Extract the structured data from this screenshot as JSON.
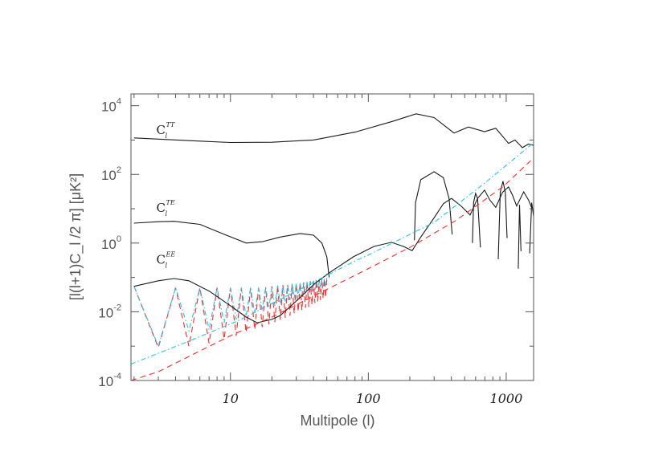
{
  "chart_data": {
    "type": "line",
    "xlabel": "Multipole (l)",
    "ylabel": "[l(l+1)C_l /2 π] [μK²]",
    "xscale": "log",
    "yscale": "log",
    "xlim": [
      1.9,
      1580
    ],
    "ylim": [
      0.0001,
      22000
    ],
    "grid": false,
    "x_tick_labels": [
      "10",
      "100",
      "1000"
    ],
    "x_ticks": [
      10,
      100,
      1000
    ],
    "y_ticks": [
      {
        "value": 10000,
        "base": "10",
        "exp": "4"
      },
      {
        "value": 100,
        "base": "10",
        "exp": "2"
      },
      {
        "value": 1,
        "base": "10",
        "exp": "0"
      },
      {
        "value": 0.01,
        "base": "10",
        "exp": "-2"
      },
      {
        "value": 0.0001,
        "base": "10",
        "exp": "-4"
      }
    ],
    "annotations": [
      {
        "text": "C",
        "sub": "l",
        "sup": "TT",
        "at": [
          2.9,
          1500
        ]
      },
      {
        "text": "C",
        "sub": "l",
        "sup": "TE",
        "at": [
          2.9,
          8
        ]
      },
      {
        "text": "C",
        "sub": "l",
        "sup": "EE",
        "at": [
          2.9,
          0.25
        ]
      }
    ],
    "colors": {
      "black": "#1a1a1a",
      "red": "#ff2a2a",
      "cyan": "#22c4ee"
    },
    "series": [
      {
        "id": "TT",
        "color": "black",
        "style": "solid",
        "segments": [
          [
            [
              2,
              1150
            ],
            [
              5,
              960
            ],
            [
              10,
              850
            ],
            [
              20,
              860
            ],
            [
              40,
              1000
            ],
            [
              80,
              1700
            ],
            [
              150,
              3500
            ],
            [
              222,
              5800
            ],
            [
              300,
              4500
            ],
            [
              418,
              1600
            ],
            [
              532,
              2400
            ],
            [
              696,
              1750
            ],
            [
              840,
              2200
            ],
            [
              1040,
              800
            ],
            [
              1158,
              1000
            ],
            [
              1310,
              600
            ],
            [
              1450,
              760
            ],
            [
              1580,
              700
            ]
          ]
        ]
      },
      {
        "id": "TE",
        "color": "black",
        "style": "solid",
        "segments": [
          [
            [
              2,
              3.8
            ],
            [
              3,
              4.2
            ],
            [
              3.9,
              4.3
            ],
            [
              6,
              3.5
            ],
            [
              9,
              1.8
            ],
            [
              13,
              1.0
            ],
            [
              17,
              1.1
            ],
            [
              23,
              1.5
            ],
            [
              32,
              1.9
            ],
            [
              40,
              1.7
            ],
            [
              46,
              1.0
            ],
            [
              50,
              0.4
            ],
            [
              52,
              0.1
            ]
          ],
          [
            [
              216,
              1.2
            ],
            [
              220,
              15
            ],
            [
              240,
              70
            ],
            [
              300,
              120
            ],
            [
              350,
              80
            ],
            [
              385,
              20
            ],
            [
              406,
              1.8
            ]
          ],
          [
            [
              569,
              1.0
            ],
            [
              580,
              15
            ],
            [
              600,
              28
            ],
            [
              620,
              20
            ],
            [
              650,
              0.75
            ]
          ],
          [
            [
              875,
              0.34
            ],
            [
              905,
              30
            ],
            [
              948,
              63
            ],
            [
              985,
              30
            ],
            [
              1014,
              1.4
            ]
          ],
          [
            [
              1222,
              0.18
            ],
            [
              1250,
              13
            ],
            [
              1280,
              0.58
            ]
          ],
          [
            [
              1480,
              0.5
            ],
            [
              1530,
              15
            ],
            [
              1580,
              6
            ]
          ]
        ]
      },
      {
        "id": "EE",
        "color": "black",
        "style": "solid",
        "segments": [
          [
            [
              2,
              0.055
            ],
            [
              3,
              0.08
            ],
            [
              3.9,
              0.093
            ],
            [
              5,
              0.08
            ],
            [
              7,
              0.04
            ],
            [
              10,
              0.015
            ],
            [
              13,
              0.007
            ],
            [
              15.6,
              0.0048
            ],
            [
              20,
              0.006
            ],
            [
              23,
              0.0078
            ],
            [
              29,
              0.018
            ],
            [
              41,
              0.067
            ],
            [
              52,
              0.136
            ],
            [
              78,
              0.4
            ],
            [
              110,
              0.8
            ],
            [
              147,
              1.05
            ],
            [
              180,
              0.8
            ],
            [
              208,
              0.6
            ],
            [
              240,
              1.5
            ],
            [
              299,
              5.3
            ],
            [
              350,
              14
            ],
            [
              401,
              20
            ],
            [
              470,
              12
            ],
            [
              547,
              6.6
            ],
            [
              620,
              20
            ],
            [
              697,
              35
            ],
            [
              760,
              18
            ],
            [
              840,
              11
            ],
            [
              940,
              30
            ],
            [
              1040,
              43
            ],
            [
              1110,
              25
            ],
            [
              1190,
              12
            ],
            [
              1340,
              31
            ],
            [
              1450,
              18
            ],
            [
              1540,
              10
            ]
          ]
        ]
      },
      {
        "id": "red-smooth",
        "color": "red",
        "style": "dashed",
        "segments": [
          [
            [
              1.9,
              0.0001
            ],
            [
              3,
              0.00018
            ],
            [
              5,
              0.0005
            ],
            [
              10,
              0.002
            ],
            [
              20,
              0.007
            ],
            [
              50,
              0.045
            ],
            [
              100,
              0.18
            ],
            [
              200,
              0.75
            ],
            [
              430,
              4.5
            ],
            [
              957,
              45
            ],
            [
              1580,
              300
            ]
          ]
        ]
      },
      {
        "id": "cyan-smooth",
        "color": "cyan",
        "style": "dashdot",
        "segments": [
          [
            [
              1.9,
              0.0003
            ],
            [
              5,
              0.0014
            ],
            [
              12,
              0.006
            ],
            [
              30,
              0.04
            ],
            [
              80,
              0.3
            ],
            [
              100,
              0.45
            ],
            [
              300,
              4
            ],
            [
              700,
              56
            ],
            [
              1580,
              830
            ]
          ]
        ]
      }
    ],
    "zigzag": [
      {
        "id": "red-zigzag",
        "color": "red",
        "style": "dashed",
        "l_start": 2,
        "values": [
          0.055,
          0.0009,
          0.05,
          0.001,
          0.05,
          0.0012,
          0.05,
          0.0016,
          0.05,
          0.002,
          0.05,
          0.0025,
          0.05,
          0.003,
          0.05,
          0.0036,
          0.052,
          0.0043,
          0.055,
          0.005,
          0.058,
          0.0058,
          0.06,
          0.0067,
          0.062,
          0.0077,
          0.065,
          0.0088,
          0.067,
          0.01,
          0.07,
          0.011,
          0.072,
          0.013,
          0.075,
          0.014,
          0.078,
          0.016,
          0.08,
          0.018,
          0.083,
          0.02,
          0.086,
          0.022,
          0.09,
          0.024,
          0.093,
          0.026,
          0.096
        ]
      },
      {
        "id": "cyan-zigzag",
        "color": "cyan",
        "style": "dashdot",
        "l_start": 2,
        "values": [
          0.055,
          0.001,
          0.05,
          0.0028,
          0.05,
          0.003,
          0.05,
          0.0047,
          0.05,
          0.006,
          0.05,
          0.0075,
          0.05,
          0.009,
          0.05,
          0.011,
          0.052,
          0.013,
          0.055,
          0.015,
          0.058,
          0.017,
          0.06,
          0.02,
          0.062,
          0.022,
          0.065,
          0.025,
          0.067,
          0.028,
          0.07,
          0.031,
          0.072,
          0.034,
          0.075,
          0.037,
          0.078,
          0.04,
          0.08,
          0.043,
          0.083,
          0.047,
          0.086,
          0.05,
          0.09,
          0.054,
          0.093,
          0.058,
          0.096
        ]
      }
    ]
  }
}
